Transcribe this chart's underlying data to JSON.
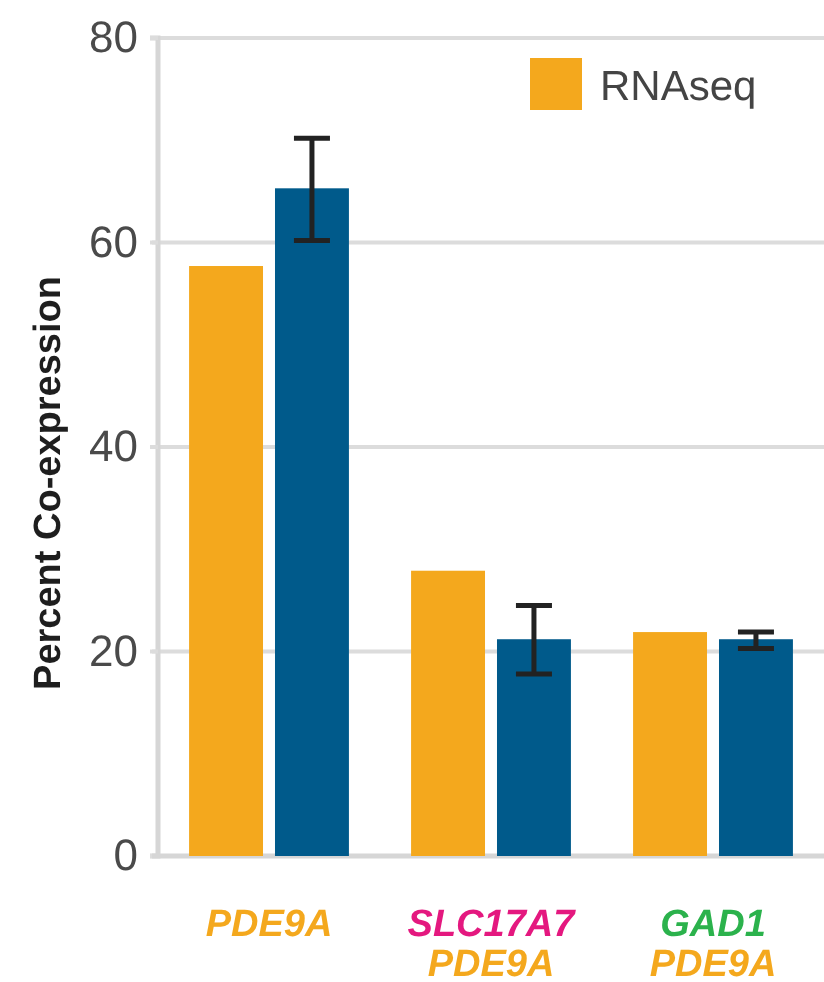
{
  "chart_data": {
    "type": "bar",
    "ylabel": "Percent Co-expression",
    "categories": [
      "PDE9A",
      "SLC17A7\nPDE9A",
      "GAD1\nPDE9A"
    ],
    "series": [
      {
        "name": "RNAseq",
        "color": "#f4a81d",
        "values": [
          57.7,
          27.9,
          21.9
        ]
      },
      {
        "color": "#005a8b",
        "values": [
          65.3,
          21.2,
          21.2
        ],
        "errors": [
          [
            60.2,
            70.2
          ],
          [
            17.8,
            24.5
          ],
          [
            20.3,
            21.9
          ]
        ]
      }
    ],
    "ylim": [
      0,
      80
    ],
    "yticks": [
      0,
      20,
      40,
      60,
      80
    ],
    "grid": "y",
    "legend": "top right"
  }
}
